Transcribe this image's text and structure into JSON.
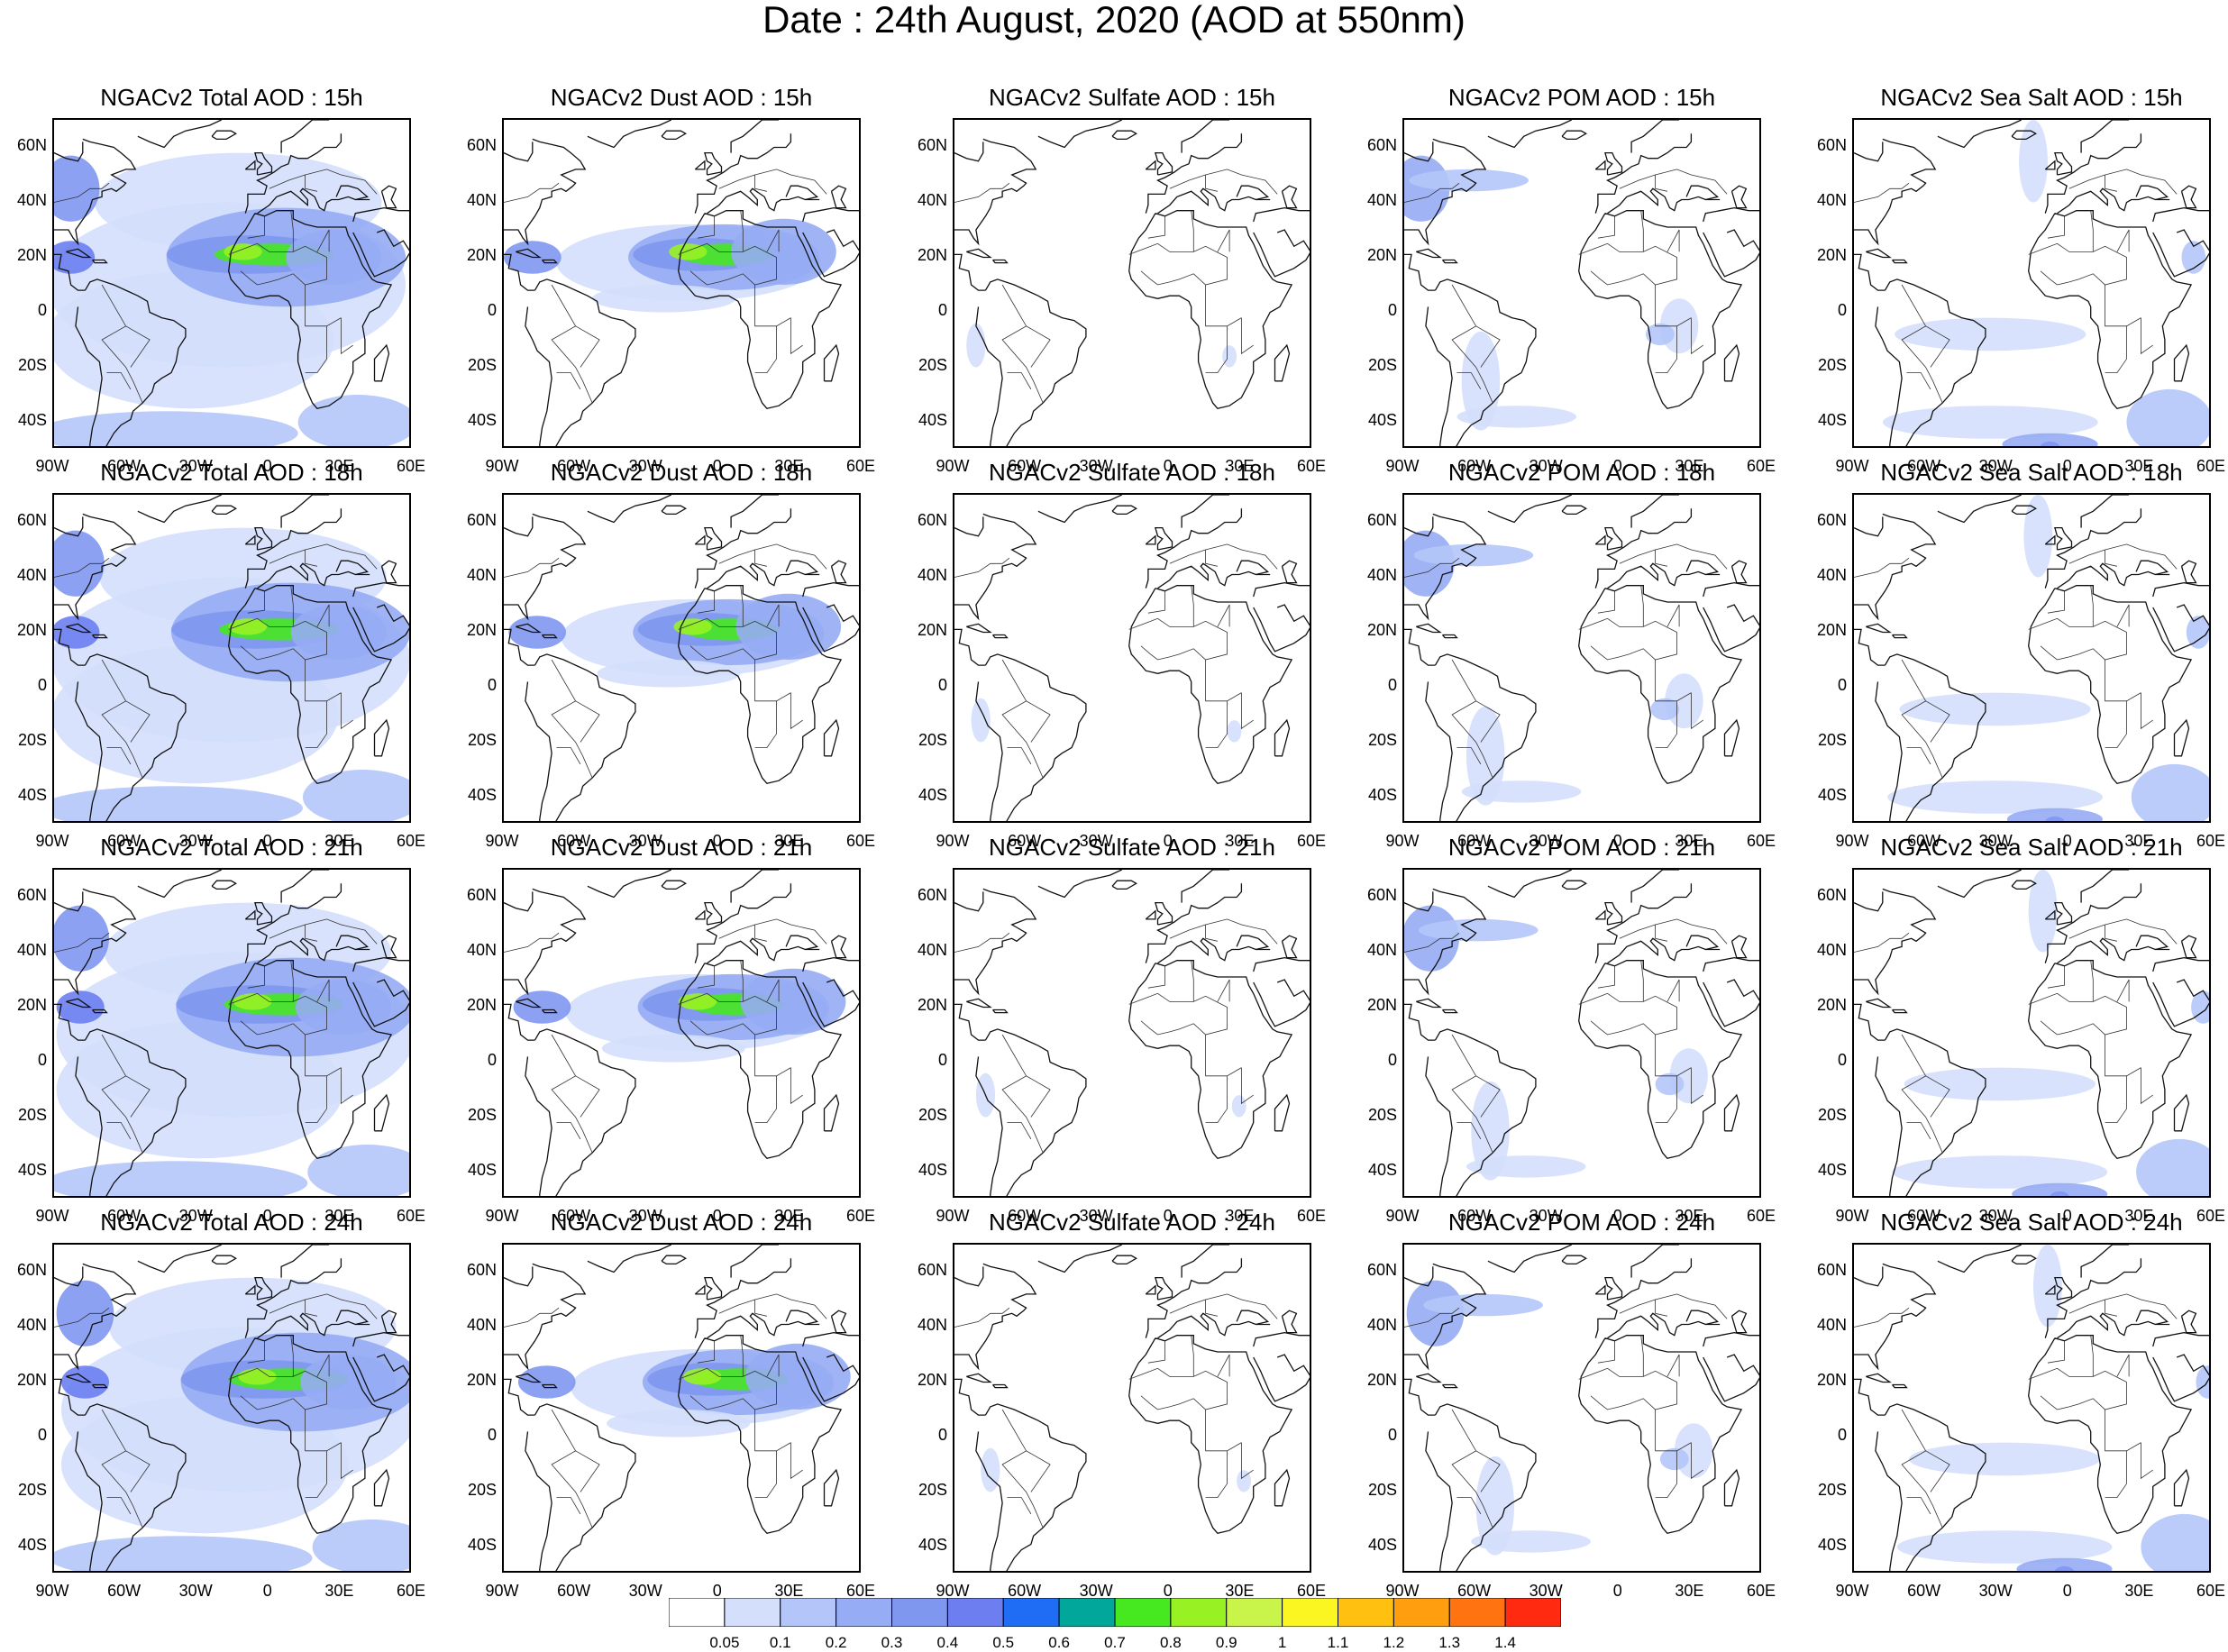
{
  "title": "Date : 24th August, 2020 (AOD at 550nm)",
  "columns": [
    {
      "key": "total",
      "titles": [
        "NGACv2 Total AOD : 15h",
        "NGACv2 Total AOD : 18h",
        "NGACv2 Total AOD : 21h",
        "NGACv2 Total AOD : 24h"
      ]
    },
    {
      "key": "dust",
      "titles": [
        "NGACv2 Dust AOD : 15h",
        "NGACv2 Dust AOD : 18h",
        "NGACv2 Dust AOD : 21h",
        "NGACv2 Dust AOD : 24h"
      ]
    },
    {
      "key": "sulfate",
      "titles": [
        "NGACv2 Sulfate AOD : 15h",
        "NGACv2 Sulfate AOD : 18h",
        "NGACv2 Sulfate AOD : 21h",
        "NGACv2 Sulfate AOD : 24h"
      ]
    },
    {
      "key": "pom",
      "titles": [
        "NGACv2 POM AOD : 15h",
        "NGACv2 POM AOD : 18h",
        "NGACv2 POM AOD : 21h",
        "NGACv2 POM AOD : 24h"
      ]
    },
    {
      "key": "seasalt",
      "titles": [
        "NGACv2 Sea Salt AOD : 15h",
        "NGACv2 Sea Salt AOD : 18h",
        "NGACv2 Sea Salt AOD : 21h",
        "NGACv2 Sea Salt  AOD : 24h"
      ]
    }
  ],
  "lat_ticks": [
    "60N",
    "40N",
    "20N",
    "0",
    "20S",
    "40S"
  ],
  "lon_ticks": [
    "90W",
    "60W",
    "30W",
    "0",
    "30E",
    "60E"
  ],
  "colorbar": {
    "labels": [
      "0.05",
      "0.1",
      "0.2",
      "0.3",
      "0.4",
      "0.5",
      "0.6",
      "0.7",
      "0.8",
      "0.9",
      "1",
      "1.1",
      "1.2",
      "1.3",
      "1.4"
    ],
    "colors": [
      "#ffffff",
      "#d4dffc",
      "#b4c6f9",
      "#96acf4",
      "#8097f0",
      "#6c7ef0",
      "#1f6df5",
      "#00a79a",
      "#46e81f",
      "#98f223",
      "#c9f44a",
      "#fbf521",
      "#ffc010",
      "#ff9f10",
      "#ff7310",
      "#ff2a10"
    ]
  }
}
